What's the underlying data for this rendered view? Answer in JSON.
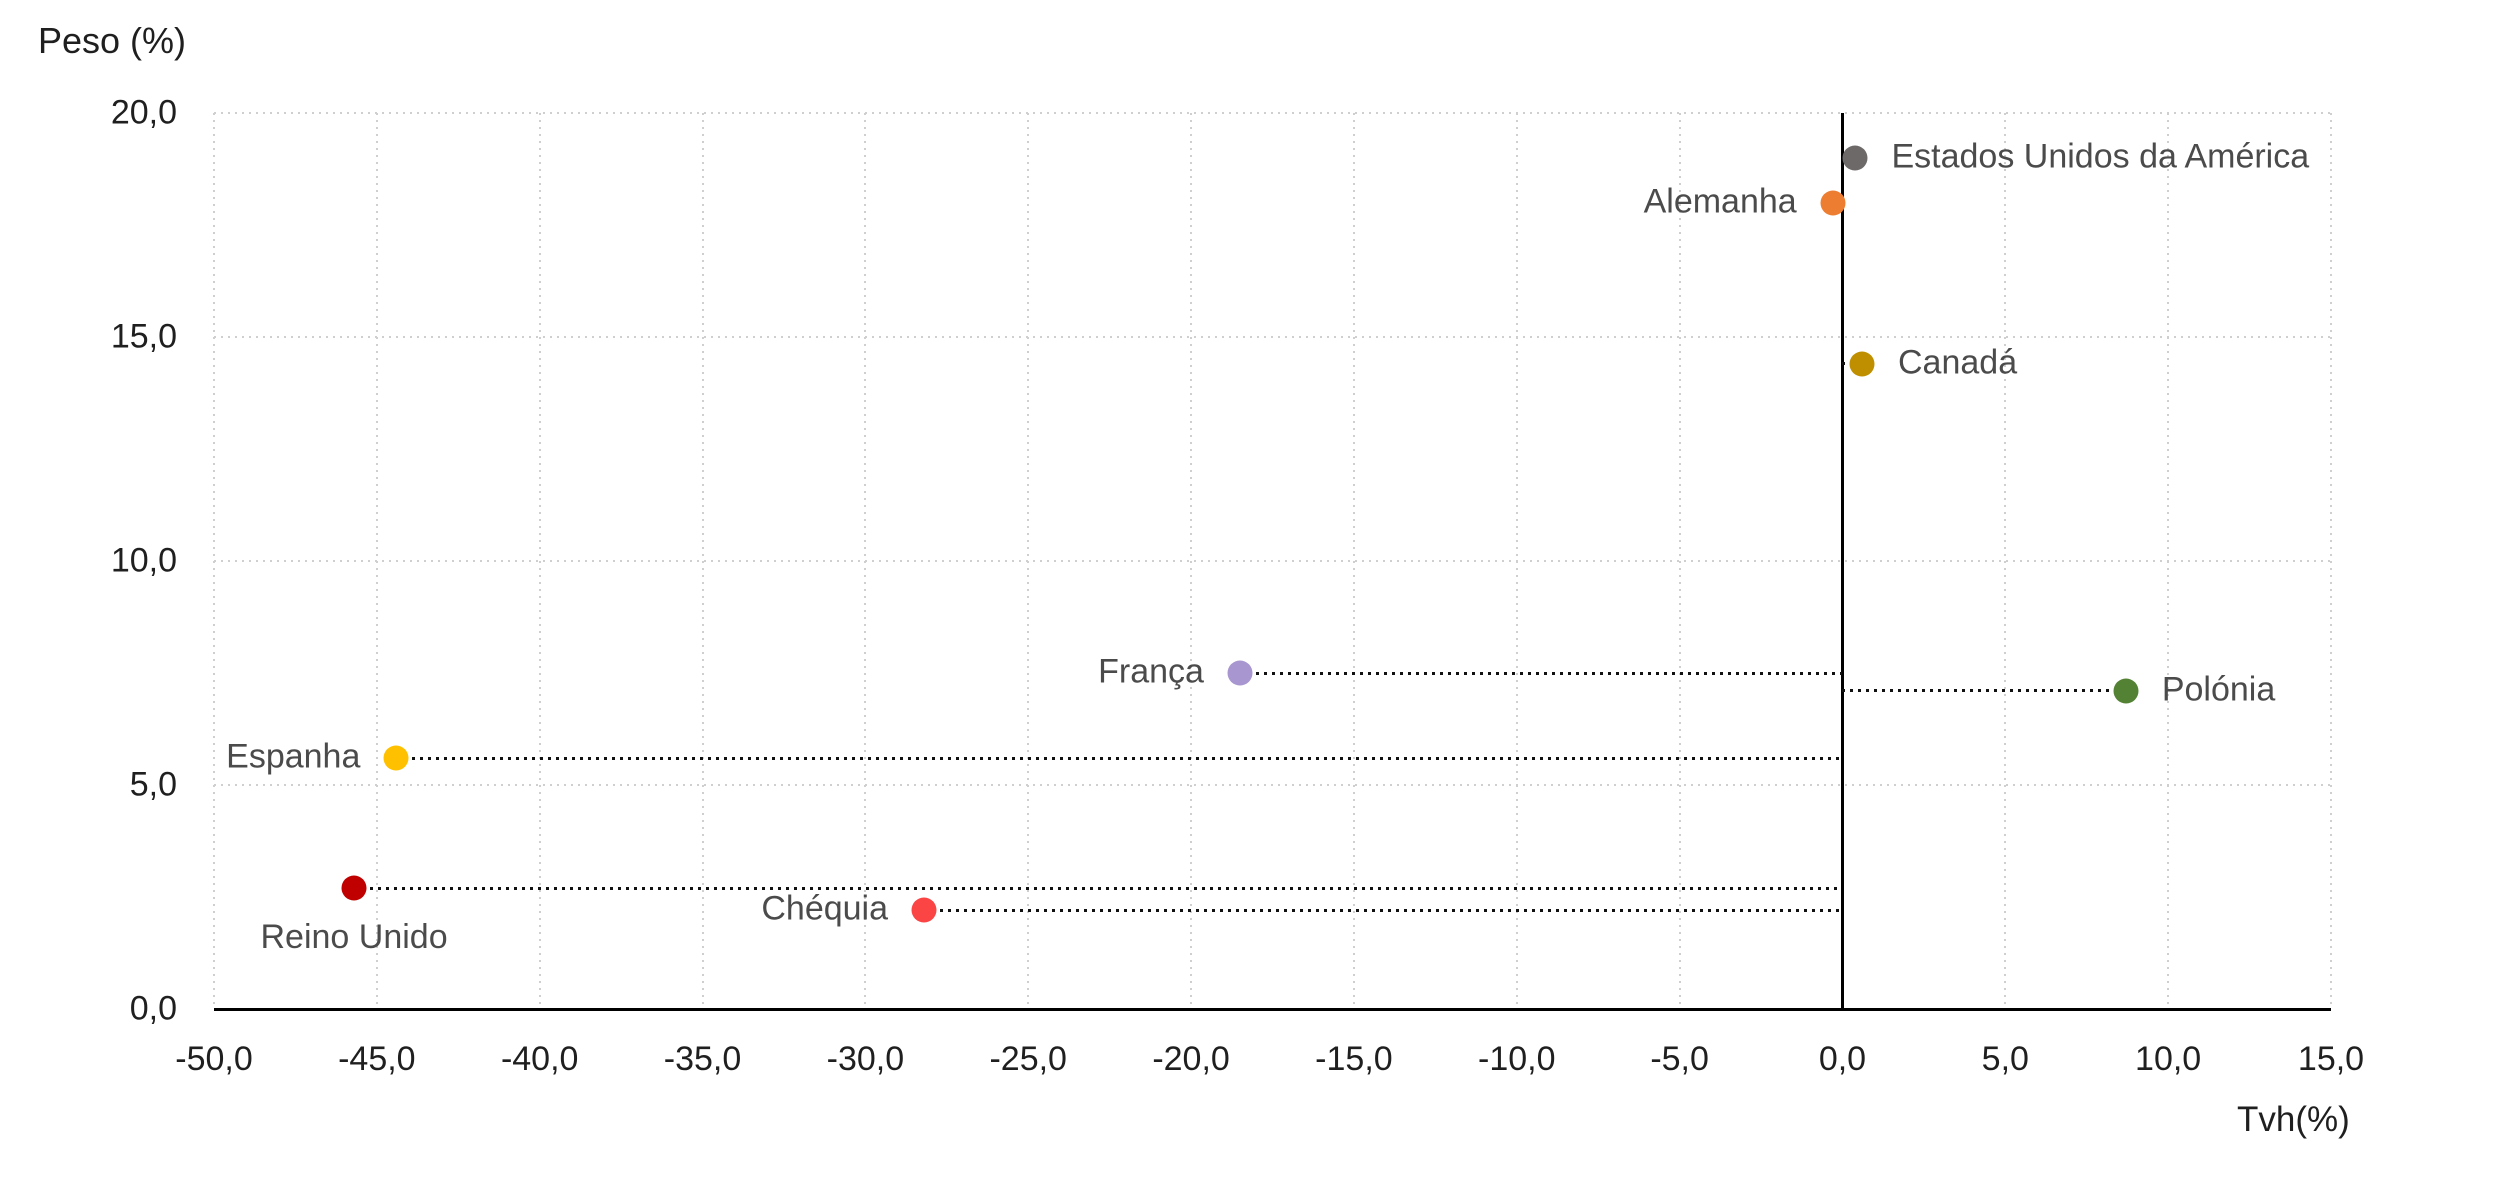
{
  "chart_data": {
    "type": "scatter",
    "title": "",
    "xlabel": "Tvh(%)",
    "ylabel": "Peso (%)",
    "xlim": [
      -50,
      15
    ],
    "ylim": [
      0,
      20
    ],
    "grid": true,
    "legend": false,
    "decimal_separator": ",",
    "x_tick_labels": [
      "-50,0",
      "-45,0",
      "-40,0",
      "-35,0",
      "-30,0",
      "-25,0",
      "-20,0",
      "-15,0",
      "-10,0",
      "-5,0",
      "0,0",
      "5,0",
      "10,0",
      "15,0"
    ],
    "x_tick_values": [
      -50,
      -45,
      -40,
      -35,
      -30,
      -25,
      -20,
      -15,
      -10,
      -5,
      0,
      5,
      10,
      15
    ],
    "y_tick_labels": [
      "0,0",
      "5,0",
      "10,0",
      "15,0",
      "20,0"
    ],
    "y_tick_values": [
      0,
      5,
      10,
      15,
      20
    ],
    "points": [
      {
        "label": "Estados Unidos da América",
        "x": 0.4,
        "y": 19.0,
        "color": "#6E6969",
        "label_side": "right",
        "leader": false
      },
      {
        "label": "Alemanha",
        "x": -0.3,
        "y": 18.0,
        "color": "#ED7D31",
        "label_side": "left",
        "leader": false
      },
      {
        "label": "Canadá",
        "x": 0.6,
        "y": 14.4,
        "color": "#BF8F00",
        "label_side": "right",
        "leader": true
      },
      {
        "label": "França",
        "x": -18.5,
        "y": 7.5,
        "color": "#A796D0",
        "label_side": "left",
        "leader": true
      },
      {
        "label": "Polónia",
        "x": 8.7,
        "y": 7.1,
        "color": "#548235",
        "label_side": "right",
        "leader": true
      },
      {
        "label": "Espanha",
        "x": -44.4,
        "y": 5.6,
        "color": "#FFC000",
        "label_side": "left",
        "leader": true
      },
      {
        "label": "Reino Unido",
        "x": -45.7,
        "y": 2.7,
        "color": "#C00000",
        "label_side": "below",
        "leader": true
      },
      {
        "label": "Chéquia",
        "x": -28.2,
        "y": 2.2,
        "color": "#FB4545",
        "label_side": "left",
        "leader": true
      }
    ]
  },
  "colors": {
    "gridline": "#cfcfcf",
    "axis": "#000000",
    "leader": "#111111",
    "tick_text": "#1f1f1f",
    "label_text": "#4b4b4b",
    "background": "#ffffff"
  }
}
